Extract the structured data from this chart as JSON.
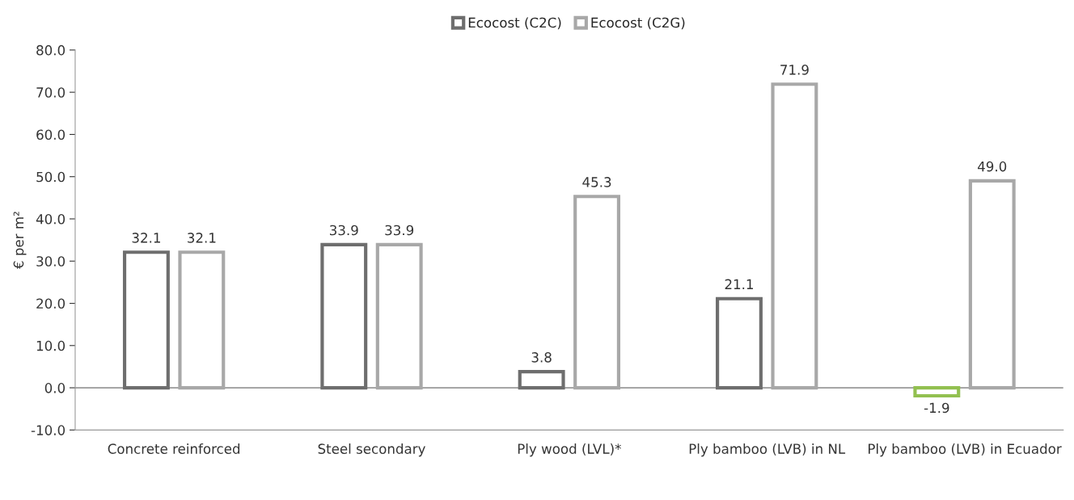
{
  "chart_data": {
    "type": "bar",
    "ylabel": "€ per m²",
    "categories": [
      "Concrete reinforced",
      "Steel secondary",
      "Ply wood (LVL)*",
      "Ply bamboo (LVB) in NL",
      "Ply bamboo (LVB) in Ecuador"
    ],
    "series": [
      {
        "name": "Ecocost (C2C)",
        "color": "#6e6e6e",
        "colors": [
          "#6e6e6e",
          "#6e6e6e",
          "#6e6e6e",
          "#6e6e6e",
          "#92c050"
        ],
        "values": [
          32.1,
          33.9,
          3.8,
          21.1,
          -1.9
        ],
        "value_labels": [
          "32.1",
          "33.9",
          "3.8",
          "21.1",
          "-1.9"
        ]
      },
      {
        "name": "Ecocost (C2G)",
        "color": "#a8a8a8",
        "values": [
          32.1,
          33.9,
          45.3,
          71.9,
          49.0
        ],
        "value_labels": [
          "32.1",
          "33.9",
          "45.3",
          "71.9",
          "49.0"
        ]
      }
    ],
    "ylim": [
      -10,
      80
    ],
    "yticks": [
      {
        "value": -10,
        "label": "-10.0"
      },
      {
        "value": 0,
        "label": "0.0"
      },
      {
        "value": 10,
        "label": "10.0"
      },
      {
        "value": 20,
        "label": "20.0"
      },
      {
        "value": 30,
        "label": "30.0"
      },
      {
        "value": 40,
        "label": "40.0"
      },
      {
        "value": 50,
        "label": "50.0"
      },
      {
        "value": 60,
        "label": "60.0"
      },
      {
        "value": 70,
        "label": "70.0"
      },
      {
        "value": 80,
        "label": "80.0"
      }
    ],
    "ref_lines": [
      {
        "axis": "y",
        "value": 0,
        "color": "#999999"
      }
    ],
    "legend": "top"
  }
}
